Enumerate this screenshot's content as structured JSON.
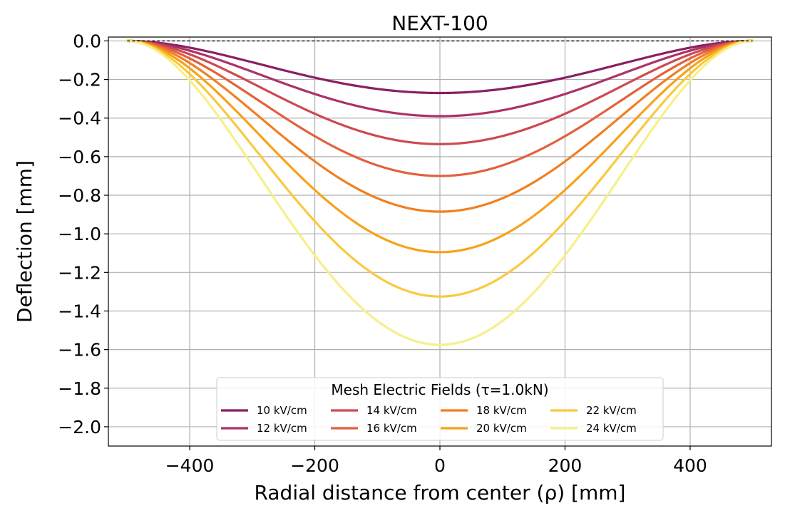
{
  "chart_data": {
    "type": "line",
    "title": "NEXT-100",
    "xlabel": "Radial distance from center (ρ) [mm]",
    "ylabel": "Deflection [mm]",
    "xlim": [
      -530,
      530
    ],
    "ylim": [
      -2.1,
      0.02
    ],
    "xticks": [
      -400,
      -200,
      0,
      200,
      400
    ],
    "xtick_labels": [
      "−400",
      "−200",
      "0",
      "200",
      "400"
    ],
    "yticks": [
      0.0,
      -0.2,
      -0.4,
      -0.6,
      -0.8,
      -1.0,
      -1.2,
      -1.4,
      -1.6,
      -1.8,
      -2.0
    ],
    "ytick_labels": [
      "0.0",
      "−0.2",
      "−0.4",
      "−0.6",
      "−0.8",
      "−1.0",
      "−1.2",
      "−1.4",
      "−1.6",
      "−1.8",
      "−2.0"
    ],
    "grid": true,
    "radius": 500,
    "zero_line": "dashed",
    "legend": {
      "title": "Mesh Electric Fields (τ=1.0kN)",
      "placement": "lower center",
      "columns": 4
    },
    "series": [
      {
        "name": "10 kV/cm",
        "center_deflection": -0.27,
        "color": "#8b1f62"
      },
      {
        "name": "12 kV/cm",
        "center_deflection": -0.39,
        "color": "#ad3266"
      },
      {
        "name": "14 kV/cm",
        "center_deflection": -0.535,
        "color": "#cc4a52"
      },
      {
        "name": "16 kV/cm",
        "center_deflection": -0.7,
        "color": "#e2613d"
      },
      {
        "name": "18 kV/cm",
        "center_deflection": -0.885,
        "color": "#f07f22"
      },
      {
        "name": "20 kV/cm",
        "center_deflection": -1.095,
        "color": "#f7a21a"
      },
      {
        "name": "22 kV/cm",
        "center_deflection": -1.325,
        "color": "#f9c93f"
      },
      {
        "name": "24 kV/cm",
        "center_deflection": -1.575,
        "color": "#f5f08a"
      }
    ]
  }
}
